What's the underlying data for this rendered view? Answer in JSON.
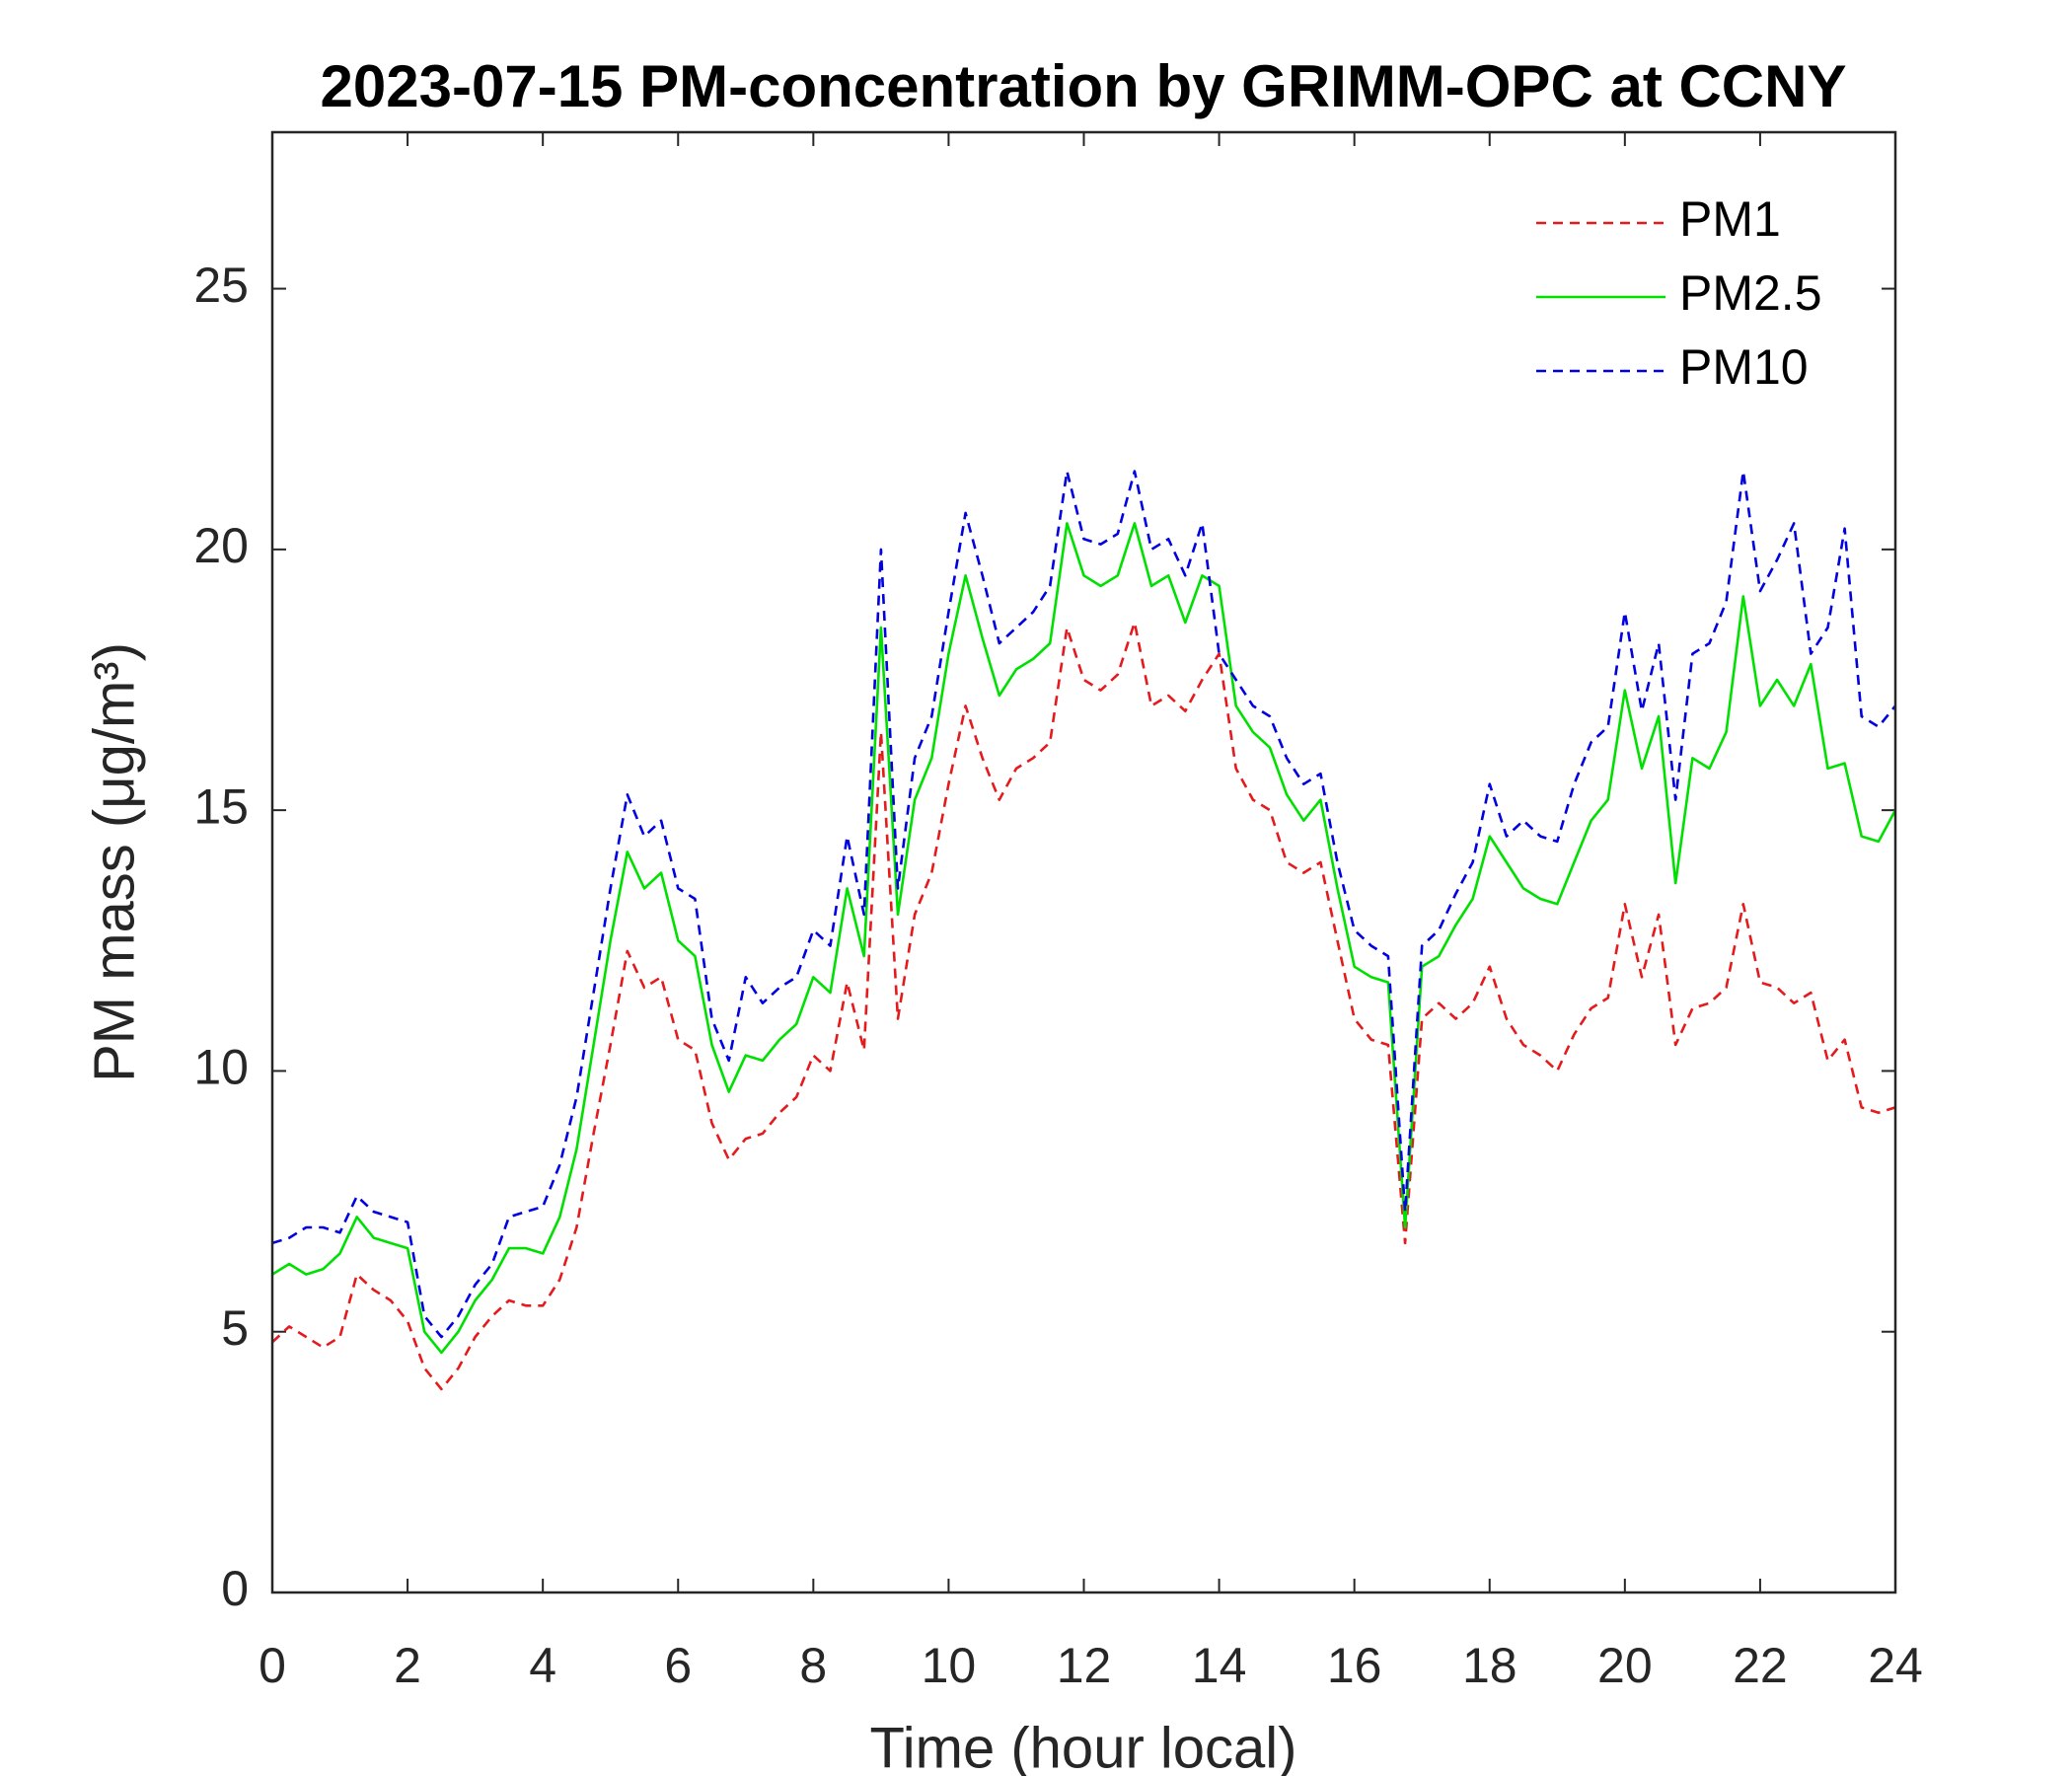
{
  "chart_data": {
    "type": "line",
    "title": "2023-07-15 PM-concentration by GRIMM-OPC at CCNY",
    "x_label": "Time (hour local)",
    "y_label": "PM mass (μg/m³)",
    "x": [
      0,
      0.25,
      0.5,
      0.75,
      1,
      1.25,
      1.5,
      1.75,
      2,
      2.25,
      2.5,
      2.75,
      3,
      3.25,
      3.5,
      3.75,
      4,
      4.25,
      4.5,
      4.75,
      5,
      5.25,
      5.5,
      5.75,
      6,
      6.25,
      6.5,
      6.75,
      7,
      7.25,
      7.5,
      7.75,
      8,
      8.25,
      8.5,
      8.75,
      9,
      9.25,
      9.5,
      9.75,
      10,
      10.25,
      10.5,
      10.75,
      11,
      11.25,
      11.5,
      11.75,
      12,
      12.25,
      12.5,
      12.75,
      13,
      13.25,
      13.5,
      13.75,
      14,
      14.25,
      14.5,
      14.75,
      15,
      15.25,
      15.5,
      15.75,
      16,
      16.25,
      16.5,
      16.75,
      17,
      17.25,
      17.5,
      17.75,
      18,
      18.25,
      18.5,
      18.75,
      19,
      19.25,
      19.5,
      19.75,
      20,
      20.25,
      20.5,
      20.75,
      21,
      21.25,
      21.5,
      21.75,
      22,
      22.25,
      22.5,
      22.75,
      23,
      23.25,
      23.5,
      23.75,
      24
    ],
    "series": [
      {
        "name": "PM1",
        "color": "#e41a1c",
        "dash": true,
        "values": [
          4.8,
          5.1,
          4.9,
          4.7,
          4.9,
          6.1,
          5.8,
          5.6,
          5.2,
          4.3,
          3.9,
          4.3,
          4.9,
          5.3,
          5.6,
          5.5,
          5.5,
          6.0,
          7.0,
          8.8,
          10.5,
          12.3,
          11.6,
          11.8,
          10.6,
          10.4,
          9.0,
          8.3,
          8.7,
          8.8,
          9.2,
          9.5,
          10.3,
          10.0,
          11.7,
          10.4,
          16.5,
          11.0,
          13.0,
          13.8,
          15.5,
          17.0,
          16.0,
          15.2,
          15.8,
          16.0,
          16.3,
          18.5,
          17.5,
          17.3,
          17.6,
          18.6,
          17.0,
          17.2,
          16.9,
          17.5,
          18.0,
          15.8,
          15.2,
          15.0,
          14.0,
          13.8,
          14.0,
          12.5,
          11.0,
          10.6,
          10.5,
          6.7,
          11.0,
          11.3,
          11.0,
          11.3,
          12.0,
          11.0,
          10.5,
          10.3,
          10.0,
          10.7,
          11.2,
          11.4,
          13.2,
          11.8,
          13.0,
          10.5,
          11.2,
          11.3,
          11.6,
          13.2,
          11.7,
          11.6,
          11.3,
          11.5,
          10.2,
          10.6,
          9.3,
          9.2,
          9.3
        ]
      },
      {
        "name": "PM2.5",
        "color": "#00e000",
        "dash": false,
        "values": [
          6.1,
          6.3,
          6.1,
          6.2,
          6.5,
          7.2,
          6.8,
          6.7,
          6.6,
          5.0,
          4.6,
          5.0,
          5.6,
          6.0,
          6.6,
          6.6,
          6.5,
          7.2,
          8.5,
          10.5,
          12.5,
          14.2,
          13.5,
          13.8,
          12.5,
          12.2,
          10.5,
          9.6,
          10.3,
          10.2,
          10.6,
          10.9,
          11.8,
          11.5,
          13.5,
          12.2,
          18.5,
          13.0,
          15.2,
          16.0,
          18.0,
          19.5,
          18.3,
          17.2,
          17.7,
          17.9,
          18.2,
          20.5,
          19.5,
          19.3,
          19.5,
          20.5,
          19.3,
          19.5,
          18.6,
          19.5,
          19.3,
          17.0,
          16.5,
          16.2,
          15.3,
          14.8,
          15.2,
          13.5,
          12.0,
          11.8,
          11.7,
          7.0,
          12.0,
          12.2,
          12.8,
          13.3,
          14.5,
          14.0,
          13.5,
          13.3,
          13.2,
          14.0,
          14.8,
          15.2,
          17.3,
          15.8,
          16.8,
          13.6,
          16.0,
          15.8,
          16.5,
          19.1,
          17.0,
          17.5,
          17.0,
          17.8,
          15.8,
          15.9,
          14.5,
          14.4,
          15.0
        ]
      },
      {
        "name": "PM10",
        "color": "#0000e0",
        "dash": true,
        "values": [
          6.7,
          6.8,
          7.0,
          7.0,
          6.9,
          7.6,
          7.3,
          7.2,
          7.1,
          5.3,
          4.9,
          5.3,
          5.9,
          6.3,
          7.2,
          7.3,
          7.4,
          8.2,
          9.5,
          11.5,
          13.5,
          15.3,
          14.5,
          14.8,
          13.5,
          13.3,
          11.0,
          10.2,
          11.8,
          11.3,
          11.6,
          11.8,
          12.7,
          12.4,
          14.5,
          13.0,
          20.0,
          13.5,
          16.0,
          16.8,
          18.8,
          20.7,
          19.5,
          18.2,
          18.5,
          18.8,
          19.3,
          21.5,
          20.2,
          20.1,
          20.3,
          21.5,
          20.0,
          20.2,
          19.5,
          20.5,
          18.0,
          17.5,
          17.0,
          16.8,
          16.0,
          15.5,
          15.7,
          14.0,
          12.7,
          12.4,
          12.2,
          7.3,
          12.4,
          12.7,
          13.4,
          14.0,
          15.5,
          14.5,
          14.8,
          14.5,
          14.4,
          15.5,
          16.3,
          16.6,
          18.8,
          16.9,
          18.2,
          15.2,
          18.0,
          18.2,
          19.0,
          21.5,
          19.2,
          19.8,
          20.5,
          18.0,
          18.5,
          20.4,
          16.8,
          16.6,
          17.0
        ]
      }
    ],
    "xlim": [
      0,
      24
    ],
    "xticks": [
      0,
      2,
      4,
      6,
      8,
      10,
      12,
      14,
      16,
      18,
      20,
      22,
      24
    ],
    "ylim": [
      0,
      28
    ],
    "yticks": [
      0,
      5,
      10,
      15,
      20,
      25
    ],
    "legend": "upper right",
    "grid": false
  }
}
